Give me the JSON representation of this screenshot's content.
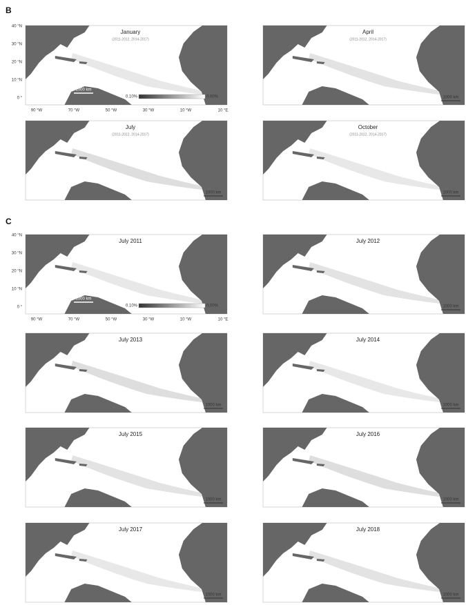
{
  "panels": [
    {
      "label": "B",
      "maps": [
        {
          "title": "January",
          "subtitle": "(2011-2012, 2014-2017)"
        },
        {
          "title": "April",
          "subtitle": "(2011-2012, 2014-2017)"
        },
        {
          "title": "July",
          "subtitle": "(2011-2012, 2014-2017)"
        },
        {
          "title": "October",
          "subtitle": "(2011-2012, 2014-2017)"
        }
      ]
    },
    {
      "label": "C",
      "maps": [
        {
          "title": "July 2011"
        },
        {
          "title": "July 2012"
        },
        {
          "title": "July 2013"
        },
        {
          "title": "July 2014"
        },
        {
          "title": "July 2015"
        },
        {
          "title": "July 2016"
        },
        {
          "title": "July 2017"
        },
        {
          "title": "July 2018"
        }
      ]
    }
  ],
  "latitude_labels": [
    "40 °N",
    "30 °N",
    "20 °N",
    "10 °N",
    "0 °"
  ],
  "longitude_labels": [
    "90 °W",
    "70 °W",
    "50 °W",
    "30 °W",
    "10 °W",
    "10 °E"
  ],
  "colorbar": {
    "high": "0.10%",
    "low": "0.00%"
  },
  "scale_bar": "1000 km"
}
